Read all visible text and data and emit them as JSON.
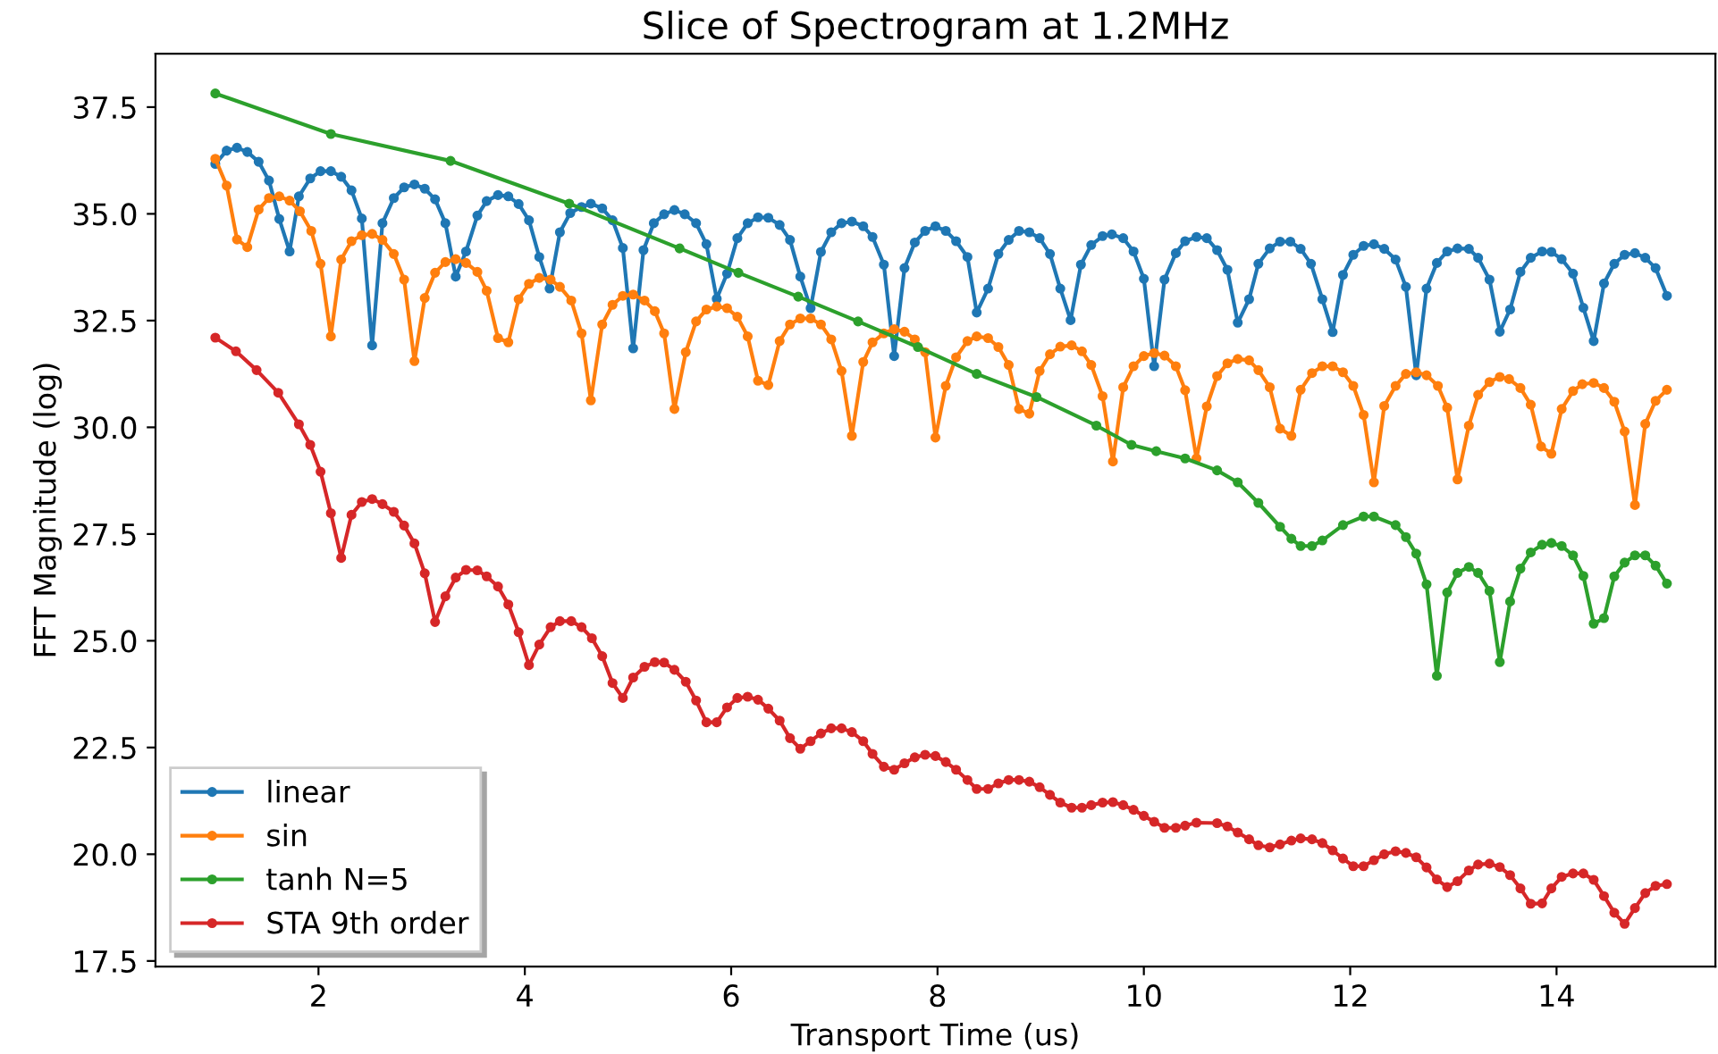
{
  "chart_data": {
    "type": "line",
    "title": "Slice of Spectrogram at 1.2MHz",
    "xlabel": "Transport Time (us)",
    "ylabel": "FFT Magnitude (log)",
    "xlim": [
      0.42,
      15.54
    ],
    "xticks": [
      2,
      4,
      6,
      8,
      10,
      12,
      14
    ],
    "ylim": [
      17.37,
      38.75
    ],
    "yticks": [
      17.5,
      {
        "value": 20,
        "label": "20.0"
      },
      22.5,
      {
        "value": 25,
        "label": "25.0"
      },
      27.5,
      {
        "value": 30,
        "label": "30.0"
      },
      32.5,
      {
        "value": 35,
        "label": "35.0"
      },
      37.5
    ],
    "grid": false,
    "legend": "bottom left",
    "marker": "circle",
    "line_style": "solid",
    "series": [
      {
        "name": "linear",
        "color": "#1f77b4",
        "x": [
          1.0,
          1.11,
          1.21,
          1.31,
          1.42,
          1.52,
          1.62,
          1.72,
          1.81,
          1.92,
          2.02,
          2.12,
          2.22,
          2.32,
          2.42,
          2.52,
          2.62,
          2.73,
          2.83,
          2.93,
          3.03,
          3.13,
          3.23,
          3.33,
          3.43,
          3.54,
          3.63,
          3.74,
          3.84,
          3.94,
          4.04,
          4.14,
          4.24,
          4.34,
          4.44,
          4.55,
          4.64,
          4.75,
          4.85,
          4.95,
          5.05,
          5.15,
          5.25,
          5.35,
          5.45,
          5.55,
          5.66,
          5.76,
          5.86,
          5.96,
          6.06,
          6.16,
          6.26,
          6.36,
          6.47,
          6.57,
          6.67,
          6.77,
          6.87,
          6.97,
          7.07,
          7.17,
          7.28,
          7.37,
          7.48,
          7.58,
          7.68,
          7.78,
          7.88,
          7.98,
          8.08,
          8.18,
          8.29,
          8.38,
          8.49,
          8.59,
          8.69,
          8.79,
          8.89,
          8.99,
          9.09,
          9.19,
          9.29,
          9.39,
          9.49,
          9.6,
          9.69,
          9.8,
          9.9,
          10.0,
          10.1,
          10.2,
          10.31,
          10.4,
          10.51,
          10.61,
          10.71,
          10.81,
          10.91,
          11.02,
          11.11,
          11.22,
          11.32,
          11.42,
          11.52,
          11.62,
          11.73,
          11.83,
          11.93,
          12.03,
          12.13,
          12.23,
          12.33,
          12.44,
          12.54,
          12.64,
          12.74,
          12.84,
          12.94,
          13.04,
          13.15,
          13.24,
          13.35,
          13.45,
          13.55,
          13.65,
          13.75,
          13.86,
          13.95,
          14.05,
          14.16,
          14.26,
          14.36,
          14.46,
          14.56,
          14.66,
          14.76,
          14.86,
          14.96,
          15.07
        ],
        "values": [
          36.17,
          36.48,
          36.55,
          36.45,
          36.22,
          35.78,
          34.88,
          34.12,
          35.41,
          35.83,
          36.0,
          36.0,
          35.87,
          35.55,
          34.89,
          31.92,
          34.78,
          35.37,
          35.62,
          35.69,
          35.59,
          35.34,
          34.78,
          33.53,
          34.12,
          34.96,
          35.3,
          35.44,
          35.41,
          35.23,
          34.85,
          33.99,
          33.25,
          34.57,
          35.02,
          35.16,
          35.24,
          35.13,
          34.85,
          34.2,
          31.85,
          34.15,
          34.78,
          34.99,
          35.09,
          34.99,
          34.78,
          34.29,
          33.01,
          33.6,
          34.43,
          34.78,
          34.92,
          34.91,
          34.74,
          34.39,
          33.53,
          32.79,
          34.11,
          34.57,
          34.78,
          34.82,
          34.71,
          34.46,
          33.81,
          31.67,
          33.73,
          34.33,
          34.6,
          34.71,
          34.6,
          34.36,
          33.99,
          32.69,
          33.25,
          34.06,
          34.39,
          34.6,
          34.57,
          34.43,
          34.06,
          33.25,
          32.51,
          33.81,
          34.27,
          34.48,
          34.52,
          34.43,
          34.12,
          33.48,
          31.43,
          33.46,
          34.08,
          34.36,
          34.46,
          34.43,
          34.15,
          33.69,
          32.45,
          33.0,
          33.83,
          34.19,
          34.35,
          34.35,
          34.18,
          33.83,
          33.0,
          32.23,
          33.57,
          34.04,
          34.25,
          34.29,
          34.18,
          33.93,
          33.29,
          31.22,
          33.25,
          33.85,
          34.12,
          34.19,
          34.18,
          33.97,
          33.46,
          32.24,
          32.76,
          33.64,
          33.97,
          34.12,
          34.11,
          33.94,
          33.6,
          32.8,
          32.02,
          33.37,
          33.83,
          34.04,
          34.08,
          33.97,
          33.73,
          33.08
        ]
      },
      {
        "name": "sin",
        "color": "#ff7f0e",
        "x": [
          1.0,
          1.11,
          1.21,
          1.31,
          1.42,
          1.52,
          1.62,
          1.72,
          1.82,
          1.93,
          2.02,
          2.12,
          2.22,
          2.32,
          2.42,
          2.52,
          2.62,
          2.73,
          2.83,
          2.93,
          3.03,
          3.13,
          3.23,
          3.33,
          3.43,
          3.54,
          3.63,
          3.74,
          3.84,
          3.94,
          4.04,
          4.14,
          4.25,
          4.34,
          4.45,
          4.55,
          4.64,
          4.75,
          4.85,
          4.95,
          5.05,
          5.16,
          5.26,
          5.35,
          5.45,
          5.56,
          5.66,
          5.76,
          5.86,
          5.96,
          6.06,
          6.16,
          6.26,
          6.36,
          6.47,
          6.57,
          6.67,
          6.77,
          6.87,
          6.97,
          7.07,
          7.17,
          7.28,
          7.37,
          7.48,
          7.58,
          7.68,
          7.78,
          7.88,
          7.98,
          8.08,
          8.18,
          8.29,
          8.38,
          8.49,
          8.59,
          8.69,
          8.79,
          8.89,
          8.99,
          9.09,
          9.19,
          9.3,
          9.4,
          9.49,
          9.6,
          9.7,
          9.8,
          9.9,
          10.0,
          10.1,
          10.2,
          10.31,
          10.4,
          10.51,
          10.61,
          10.71,
          10.81,
          10.91,
          11.02,
          11.11,
          11.22,
          11.32,
          11.43,
          11.52,
          11.63,
          11.73,
          11.83,
          11.93,
          12.03,
          12.13,
          12.23,
          12.33,
          12.44,
          12.54,
          12.64,
          12.74,
          12.85,
          12.94,
          13.04,
          13.15,
          13.24,
          13.35,
          13.45,
          13.54,
          13.65,
          13.75,
          13.85,
          13.95,
          14.05,
          14.16,
          14.25,
          14.36,
          14.46,
          14.56,
          14.66,
          14.76,
          14.86,
          14.96,
          15.07
        ],
        "values": [
          36.29,
          35.66,
          34.4,
          34.22,
          35.1,
          35.37,
          35.41,
          35.31,
          35.06,
          34.6,
          33.83,
          32.13,
          33.93,
          34.36,
          34.5,
          34.53,
          34.39,
          34.06,
          33.46,
          31.55,
          33.03,
          33.62,
          33.87,
          33.94,
          33.85,
          33.64,
          33.2,
          32.09,
          31.99,
          33.0,
          33.36,
          33.5,
          33.46,
          33.29,
          32.97,
          32.2,
          30.63,
          32.41,
          32.87,
          33.08,
          33.11,
          32.97,
          32.72,
          32.2,
          30.43,
          31.76,
          32.48,
          32.76,
          32.83,
          32.79,
          32.59,
          32.13,
          31.09,
          30.99,
          32.02,
          32.41,
          32.55,
          32.55,
          32.41,
          32.06,
          31.32,
          29.8,
          31.53,
          31.99,
          32.2,
          32.3,
          32.24,
          32.06,
          31.76,
          29.76,
          30.97,
          31.64,
          32.02,
          32.13,
          32.09,
          31.88,
          31.46,
          30.43,
          30.32,
          31.32,
          31.71,
          31.89,
          31.92,
          31.78,
          31.46,
          30.73,
          29.2,
          30.94,
          31.43,
          31.67,
          31.74,
          31.68,
          31.43,
          30.87,
          29.27,
          30.49,
          31.2,
          31.5,
          31.6,
          31.57,
          31.34,
          30.94,
          29.97,
          29.8,
          30.88,
          31.27,
          31.43,
          31.43,
          31.29,
          30.97,
          30.29,
          28.71,
          30.5,
          30.97,
          31.25,
          31.29,
          31.22,
          30.97,
          30.46,
          28.78,
          30.04,
          30.76,
          31.06,
          31.18,
          31.13,
          30.92,
          30.53,
          29.55,
          29.38,
          30.43,
          30.85,
          31.01,
          31.04,
          30.92,
          30.6,
          29.9,
          28.18,
          30.08,
          30.62,
          30.88
        ]
      },
      {
        "name": "tanh N=5",
        "color": "#2ca02c",
        "x": [
          1.0,
          2.12,
          3.28,
          4.43,
          5.5,
          6.07,
          6.65,
          7.23,
          7.81,
          8.38,
          8.96,
          9.54,
          9.88,
          10.12,
          10.4,
          10.71,
          10.91,
          11.11,
          11.32,
          11.43,
          11.52,
          11.63,
          11.73,
          11.93,
          12.13,
          12.23,
          12.44,
          12.54,
          12.64,
          12.74,
          12.84,
          12.94,
          13.04,
          13.15,
          13.24,
          13.35,
          13.45,
          13.55,
          13.65,
          13.75,
          13.86,
          13.95,
          14.05,
          14.16,
          14.26,
          14.36,
          14.46,
          14.56,
          14.66,
          14.76,
          14.86,
          14.96,
          15.07
        ],
        "values": [
          37.82,
          36.87,
          36.24,
          35.24,
          34.19,
          33.62,
          33.06,
          32.48,
          31.88,
          31.25,
          30.71,
          30.04,
          29.59,
          29.44,
          29.27,
          28.99,
          28.71,
          28.23,
          27.67,
          27.39,
          27.22,
          27.22,
          27.35,
          27.71,
          27.91,
          27.91,
          27.71,
          27.43,
          27.04,
          26.32,
          24.18,
          26.13,
          26.59,
          26.73,
          26.59,
          26.17,
          24.5,
          25.92,
          26.69,
          27.07,
          27.25,
          27.29,
          27.22,
          27.0,
          26.52,
          25.4,
          25.53,
          26.51,
          26.83,
          27.0,
          27.0,
          26.76,
          26.34
        ]
      },
      {
        "name": "STA 9th order",
        "color": "#d62728",
        "x": [
          1.0,
          1.2,
          1.4,
          1.61,
          1.81,
          1.92,
          2.02,
          2.12,
          2.22,
          2.32,
          2.42,
          2.52,
          2.62,
          2.73,
          2.83,
          2.93,
          3.03,
          3.13,
          3.23,
          3.33,
          3.43,
          3.54,
          3.63,
          3.74,
          3.84,
          3.94,
          4.04,
          4.14,
          4.25,
          4.34,
          4.45,
          4.55,
          4.65,
          4.75,
          4.85,
          4.95,
          5.05,
          5.16,
          5.26,
          5.35,
          5.45,
          5.56,
          5.66,
          5.76,
          5.86,
          5.96,
          6.06,
          6.16,
          6.26,
          6.36,
          6.47,
          6.57,
          6.67,
          6.77,
          6.87,
          6.97,
          7.07,
          7.17,
          7.28,
          7.37,
          7.48,
          7.58,
          7.68,
          7.78,
          7.88,
          7.98,
          8.08,
          8.18,
          8.29,
          8.38,
          8.49,
          8.59,
          8.69,
          8.79,
          8.89,
          8.99,
          9.09,
          9.19,
          9.3,
          9.4,
          9.49,
          9.6,
          9.7,
          9.8,
          9.9,
          10.0,
          10.1,
          10.2,
          10.31,
          10.4,
          10.51,
          10.71,
          10.81,
          10.91,
          11.02,
          11.11,
          11.22,
          11.32,
          11.43,
          11.52,
          11.63,
          11.73,
          11.83,
          11.93,
          12.03,
          12.13,
          12.23,
          12.33,
          12.44,
          12.54,
          12.64,
          12.74,
          12.84,
          12.94,
          13.04,
          13.15,
          13.24,
          13.35,
          13.45,
          13.55,
          13.65,
          13.75,
          13.86,
          13.95,
          14.05,
          14.16,
          14.26,
          14.36,
          14.46,
          14.56,
          14.66,
          14.76,
          14.86,
          14.96,
          15.07
        ],
        "values": [
          32.1,
          31.78,
          31.34,
          30.81,
          30.07,
          29.59,
          28.96,
          27.99,
          26.94,
          27.95,
          28.25,
          28.32,
          28.2,
          28.02,
          27.7,
          27.28,
          26.58,
          25.44,
          26.04,
          26.48,
          26.66,
          26.65,
          26.51,
          26.27,
          25.85,
          25.2,
          24.43,
          24.91,
          25.32,
          25.46,
          25.46,
          25.32,
          25.06,
          24.64,
          24.01,
          23.66,
          24.14,
          24.39,
          24.5,
          24.49,
          24.32,
          24.04,
          23.6,
          23.09,
          23.09,
          23.44,
          23.66,
          23.69,
          23.62,
          23.41,
          23.13,
          22.72,
          22.47,
          22.65,
          22.83,
          22.95,
          22.95,
          22.86,
          22.65,
          22.35,
          22.05,
          21.98,
          22.13,
          22.27,
          22.33,
          22.3,
          22.16,
          21.98,
          21.74,
          21.53,
          21.53,
          21.66,
          21.74,
          21.74,
          21.7,
          21.57,
          21.39,
          21.21,
          21.09,
          21.09,
          21.15,
          21.21,
          21.22,
          21.15,
          21.04,
          20.9,
          20.76,
          20.62,
          20.62,
          20.67,
          20.74,
          20.73,
          20.65,
          20.51,
          20.35,
          20.21,
          20.16,
          20.23,
          20.32,
          20.37,
          20.35,
          20.26,
          20.09,
          19.9,
          19.72,
          19.72,
          19.86,
          20.0,
          20.07,
          20.03,
          19.93,
          19.69,
          19.41,
          19.23,
          19.37,
          19.62,
          19.76,
          19.78,
          19.7,
          19.51,
          19.2,
          18.84,
          18.85,
          19.2,
          19.47,
          19.55,
          19.55,
          19.4,
          19.02,
          18.63,
          18.37,
          18.74,
          19.09,
          19.26,
          19.3
        ]
      }
    ]
  }
}
